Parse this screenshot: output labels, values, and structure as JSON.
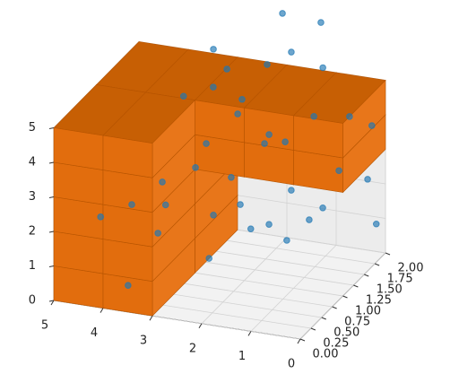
{
  "chart_data": {
    "type": "voxels-scatter3d",
    "xlim": [
      0,
      5
    ],
    "ylim": [
      0,
      2
    ],
    "zlim": [
      0,
      5
    ],
    "xticks": [
      0,
      1,
      2,
      3,
      4,
      5
    ],
    "yticks": [
      {
        "value": 0,
        "label": "0.00"
      },
      {
        "value": 0.25,
        "label": "0.25"
      },
      {
        "value": 0.5,
        "label": "0.50"
      },
      {
        "value": 0.75,
        "label": "0.75"
      },
      {
        "value": 1,
        "label": "1.00"
      },
      {
        "value": 1.25,
        "label": "1.25"
      },
      {
        "value": 1.5,
        "label": "1.50"
      },
      {
        "value": 1.75,
        "label": "1.75"
      },
      {
        "value": 2,
        "label": "2.00"
      }
    ],
    "zticks": [
      0,
      1,
      2,
      3,
      4,
      5
    ],
    "grid": true,
    "voxel_color": "#e26d0d",
    "voxels": [
      [
        4,
        1,
        0
      ],
      [
        3,
        1,
        0
      ],
      [
        4,
        1,
        1
      ],
      [
        3,
        1,
        1
      ],
      [
        4,
        1,
        2
      ],
      [
        3,
        1,
        2
      ],
      [
        2,
        1,
        3
      ],
      [
        1,
        1,
        3
      ],
      [
        0,
        1,
        3
      ],
      [
        4,
        1,
        3
      ],
      [
        3,
        1,
        3
      ],
      [
        2,
        1,
        4
      ],
      [
        1,
        1,
        4
      ],
      [
        0,
        1,
        4
      ],
      [
        4,
        1,
        4
      ],
      [
        3,
        1,
        4
      ],
      [
        4,
        0,
        0
      ],
      [
        3,
        0,
        0
      ],
      [
        4,
        0,
        1
      ],
      [
        3,
        0,
        1
      ],
      [
        4,
        0,
        2
      ],
      [
        3,
        0,
        2
      ],
      [
        4,
        0,
        3
      ],
      [
        3,
        0,
        3
      ],
      [
        4,
        0,
        4
      ],
      [
        3,
        0,
        4
      ]
    ],
    "series": [
      {
        "color": "#1f77b4",
        "x": [
          3.58,
          2.11,
          4.31,
          3.85,
          3.32,
          3.49,
          2.99,
          2.54,
          1.24,
          0.62,
          1.22,
          2.34,
          0.84,
          2.87,
          0.34,
          0.1,
          0.19,
          1.59,
          1.43,
          3.29,
          2.48,
          3.75,
          3.32,
          1.02,
          0.47,
          0.19,
          3.13,
          2.4,
          1.27,
          3.49,
          1.91,
          1.31,
          2.09,
          3.25,
          1.35,
          0.77,
          2.65,
          1.93
        ],
        "y": [
          0.1,
          0.3,
          0.3,
          0.5,
          0.5,
          0.8,
          1.0,
          0.9,
          0.7,
          0.4,
          1.2,
          1.3,
          1.5,
          1.7,
          1.3,
          1.9,
          1.8,
          1.0,
          1.3,
          1.6,
          1.4,
          1.6,
          1.8,
          1.5,
          1.7,
          1.9,
          1.9,
          2.0,
          2.0,
          2.0,
          2.0,
          2.0,
          2.0,
          0.6,
          0.4,
          1.1,
          1.7,
          1.5
        ],
        "z": [
          0.63,
          1.49,
          2.2,
          2.41,
          1.7,
          2.77,
          3.05,
          1.9,
          2.17,
          2.22,
          2.54,
          1.75,
          1.74,
          1.92,
          3.18,
          0.94,
          2.34,
          4.06,
          3.77,
          2.93,
          4.22,
          4.2,
          4.31,
          4.35,
          4.22,
          3.77,
          4.75,
          4.92,
          5.08,
          5.12,
          5.39,
          6.38,
          6.47,
          2.41,
          2.39,
          1.91,
          4.23,
          3.62
        ]
      }
    ]
  }
}
